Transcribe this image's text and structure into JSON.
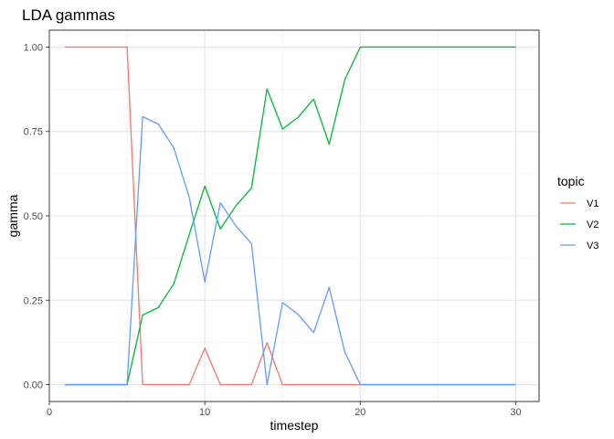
{
  "chart_data": {
    "type": "line",
    "title": "LDA gammas",
    "xlabel": "timestep",
    "ylabel": "gamma",
    "xlim": [
      0,
      31.5
    ],
    "ylim": [
      -0.05,
      1.05
    ],
    "x_ticks": [
      0,
      10,
      20,
      30
    ],
    "y_ticks": [
      0.0,
      0.25,
      0.5,
      0.75,
      1.0
    ],
    "x_tick_labels": [
      "0",
      "10",
      "20",
      "30"
    ],
    "y_tick_labels": [
      "0.00",
      "0.25",
      "0.50",
      "0.75",
      "1.00"
    ],
    "grid": true,
    "legend": {
      "title": "topic",
      "position": "right"
    },
    "x": [
      1,
      2,
      3,
      4,
      5,
      6,
      7,
      8,
      9,
      10,
      11,
      12,
      13,
      14,
      15,
      16,
      17,
      18,
      19,
      20,
      21,
      22,
      23,
      24,
      25,
      26,
      27,
      28,
      29,
      30
    ],
    "series": [
      {
        "name": "V1",
        "color": "#F8766D",
        "values": [
          1,
          1,
          1,
          1,
          1,
          0,
          0,
          0,
          0,
          0.108,
          0,
          0,
          0,
          0.124,
          0,
          0,
          0,
          0,
          0,
          0,
          0,
          0,
          0,
          0,
          0,
          0,
          0,
          0,
          0,
          0
        ]
      },
      {
        "name": "V2",
        "color": "#00BA38",
        "values": [
          0,
          0,
          0,
          0,
          0,
          0.206,
          0.228,
          0.298,
          0.445,
          0.588,
          0.461,
          0.53,
          0.582,
          0.876,
          0.757,
          0.792,
          0.846,
          0.712,
          0.903,
          1,
          1,
          1,
          1,
          1,
          1,
          1,
          1,
          1,
          1,
          1
        ]
      },
      {
        "name": "V3",
        "color": "#619CFF",
        "values": [
          0,
          0,
          0,
          0,
          0,
          0.794,
          0.772,
          0.702,
          0.555,
          0.304,
          0.539,
          0.47,
          0.418,
          0,
          0.243,
          0.208,
          0.154,
          0.288,
          0.097,
          0,
          0,
          0,
          0,
          0,
          0,
          0,
          0,
          0,
          0,
          0
        ]
      }
    ]
  }
}
